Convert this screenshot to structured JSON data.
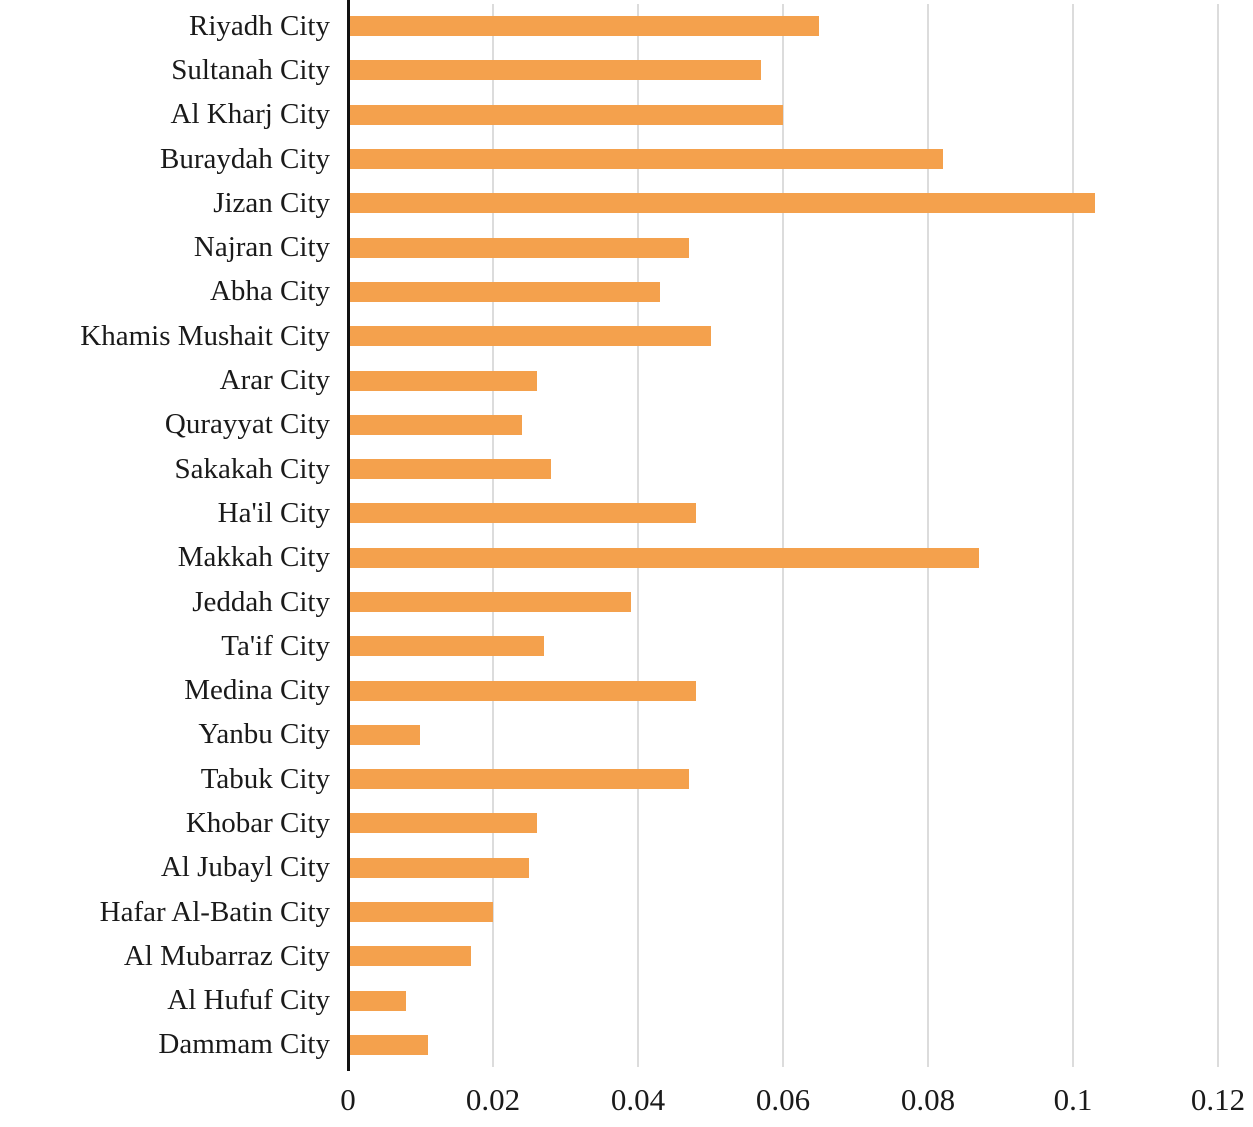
{
  "chart_data": {
    "type": "bar",
    "orientation": "horizontal",
    "categories": [
      "Riyadh City",
      "Sultanah City",
      "Al Kharj City",
      "Buraydah City",
      "Jizan City",
      "Najran City",
      "Abha City",
      "Khamis Mushait City",
      "Arar City",
      "Qurayyat City",
      "Sakakah City",
      "Ha'il City",
      "Makkah City",
      "Jeddah City",
      "Ta'if City",
      "Medina City",
      "Yanbu City",
      "Tabuk City",
      "Khobar City",
      "Al Jubayl City",
      "Hafar Al-Batin City",
      "Al Mubarraz City",
      "Al Hufuf City",
      "Dammam City"
    ],
    "values": [
      0.065,
      0.057,
      0.06,
      0.082,
      0.103,
      0.047,
      0.043,
      0.05,
      0.026,
      0.024,
      0.028,
      0.048,
      0.087,
      0.039,
      0.027,
      0.048,
      0.01,
      0.047,
      0.026,
      0.025,
      0.02,
      0.017,
      0.008,
      0.011
    ],
    "xlim": [
      0,
      0.12
    ],
    "xticks": [
      0,
      0.02,
      0.04,
      0.06,
      0.08,
      0.1,
      0.12
    ],
    "xtick_labels": [
      "0",
      "0.02",
      "0.04",
      "0.06",
      "0.08",
      "0.1",
      "0.12"
    ],
    "xlabel": "",
    "ylabel": "",
    "grid": "vertical",
    "legend": "none",
    "bar_color": "#F4A14D",
    "grid_color": "#DCDCDC",
    "axis_color": "#111111",
    "text_color": "#1A1A1A"
  }
}
